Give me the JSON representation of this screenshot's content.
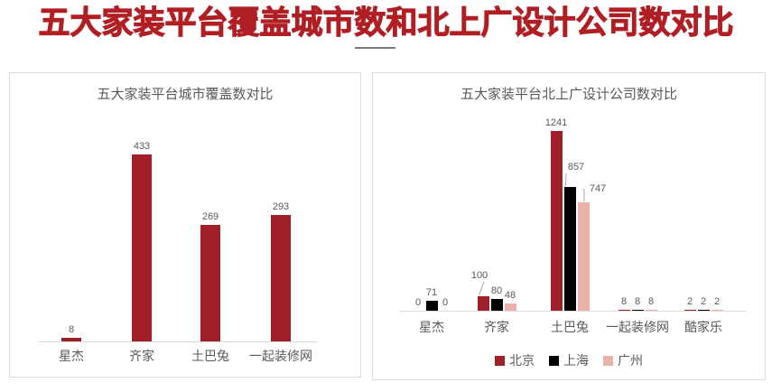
{
  "header": {
    "title": "五大家装平台覆盖城市数和北上广设计公司数对比"
  },
  "colors": {
    "title_red": "#B01F24",
    "bar_red": "#A0202A",
    "bar_black": "#000000",
    "bar_pink": "#E9B1AA",
    "panel_border": "#DCDCDC",
    "axis_gray": "#D9D9D9",
    "text_gray": "#595959"
  },
  "chart_data": [
    {
      "type": "bar",
      "title": "五大家装平台城市覆盖数对比",
      "categories": [
        "星杰",
        "齐家",
        "土巴兔",
        "一起装修网"
      ],
      "series": [
        {
          "color": "#A0202A",
          "values": [
            8,
            433,
            269,
            293
          ]
        }
      ],
      "ylim": [
        0,
        450
      ],
      "grid": false,
      "legend": false,
      "data_labels": true
    },
    {
      "type": "bar",
      "title": "五大家装平台北上广设计公司数对比",
      "categories": [
        "星杰",
        "齐家",
        "土巴兔",
        "一起装修网",
        "酷家乐"
      ],
      "series": [
        {
          "name": "北京",
          "color": "#A0202A",
          "values": [
            0,
            100,
            1241,
            8,
            2
          ]
        },
        {
          "name": "上海",
          "color": "#000000",
          "values": [
            71,
            80,
            857,
            8,
            2
          ]
        },
        {
          "name": "广州",
          "color": "#E9B1AA",
          "values": [
            0,
            48,
            747,
            8,
            2
          ]
        }
      ],
      "ylim": [
        0,
        1300
      ],
      "grid": false,
      "legend": true,
      "legend_position": "bottom",
      "data_labels": true
    }
  ]
}
